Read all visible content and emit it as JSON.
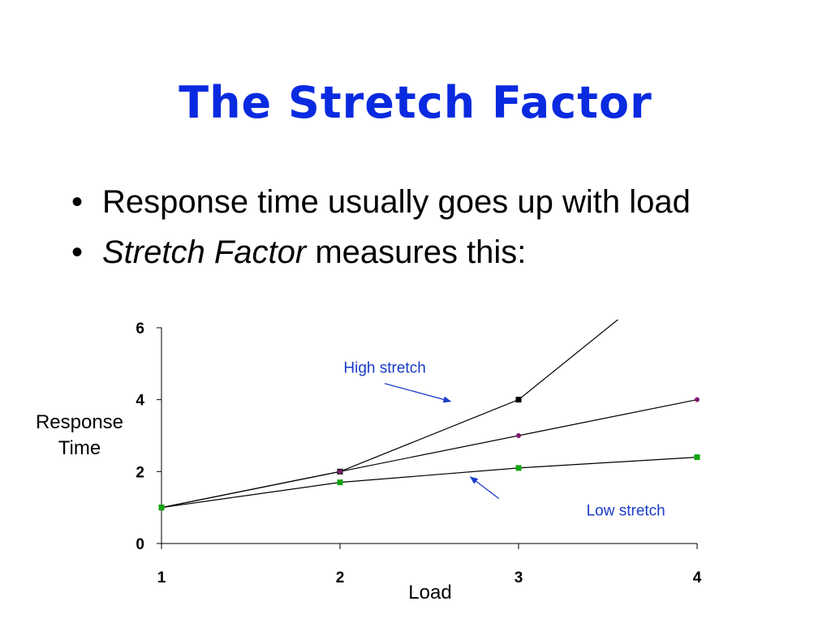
{
  "slide": {
    "title": "The Stretch Factor",
    "bullets": [
      {
        "bullet": "•",
        "emphasis": "",
        "text": "Response time usually goes up with load"
      },
      {
        "bullet": "•",
        "emphasis": "Stretch Factor",
        "text": " measures this:"
      }
    ]
  },
  "colors": {
    "title": "#0a2ae0",
    "annotation": "#1a3cc8",
    "black_series": "#000000",
    "purple_series": "#7b1a6e",
    "green_series": "#12a312"
  },
  "chart_data": {
    "type": "line",
    "xlabel": "Load",
    "ylabel": "Response Time",
    "x": [
      1,
      2,
      3,
      4
    ],
    "xlim": [
      1,
      4
    ],
    "ylim": [
      0,
      6
    ],
    "xticks": [
      "1",
      "2",
      "3",
      "4"
    ],
    "yticks": [
      "0",
      "2",
      "4",
      "6"
    ],
    "grid": false,
    "series": [
      {
        "key": "black",
        "marker": "square",
        "values": [
          1,
          2,
          4,
          8
        ]
      },
      {
        "key": "purple",
        "marker": "circle",
        "values": [
          1,
          2,
          3,
          4
        ]
      },
      {
        "key": "green",
        "marker": "square",
        "values": [
          1,
          1.7,
          2.1,
          2.4
        ]
      }
    ],
    "annotations": [
      {
        "text": "High stretch",
        "label_at": [
          2.02,
          4.75
        ],
        "arrow_from": [
          2.25,
          4.45
        ],
        "arrow_to": [
          2.62,
          3.95
        ]
      },
      {
        "text": "Low stretch",
        "label_at": [
          3.38,
          0.78
        ],
        "arrow_from": [
          2.89,
          1.25
        ],
        "arrow_to": [
          2.73,
          1.85
        ]
      }
    ]
  }
}
